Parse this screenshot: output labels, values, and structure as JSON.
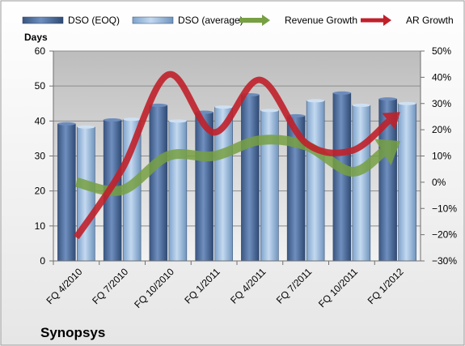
{
  "chart_data": {
    "type": "bar",
    "company": "Synopsys",
    "left_axis": {
      "title": "Days",
      "min": 0,
      "max": 60,
      "step": 10
    },
    "right_axis": {
      "min": -30,
      "max": 50,
      "step": 10,
      "unit": "%"
    },
    "categories": [
      "FQ 4/2010",
      "FQ 7/2010",
      "FQ 10/2010",
      "FQ 1/2011",
      "FQ 4/2011",
      "FQ 7/2011",
      "FQ 10/2011",
      "FQ 1/2012"
    ],
    "series": [
      {
        "name": "DSO (EOQ)",
        "kind": "bar",
        "axis": "left",
        "color": "#4a6a9a",
        "values": [
          39.2,
          40.3,
          44.5,
          42.5,
          47.5,
          41.5,
          48,
          46.3
        ]
      },
      {
        "name": "DSO (average)",
        "kind": "bar",
        "axis": "left",
        "color": "#8fb3d9",
        "values": [
          38.3,
          40.5,
          40,
          44,
          43,
          45.8,
          44.5,
          45
        ]
      },
      {
        "name": "Revenue Growth",
        "kind": "line",
        "axis": "right",
        "color": "#77a042",
        "values": [
          0,
          -3,
          10,
          10,
          16,
          14,
          4,
          15
        ]
      },
      {
        "name": "AR Growth",
        "kind": "line",
        "axis": "right",
        "color": "#c0202a",
        "values": [
          -21,
          5,
          41,
          19,
          39,
          15,
          12,
          26
        ]
      }
    ],
    "grid": true,
    "legend_position": "top"
  }
}
